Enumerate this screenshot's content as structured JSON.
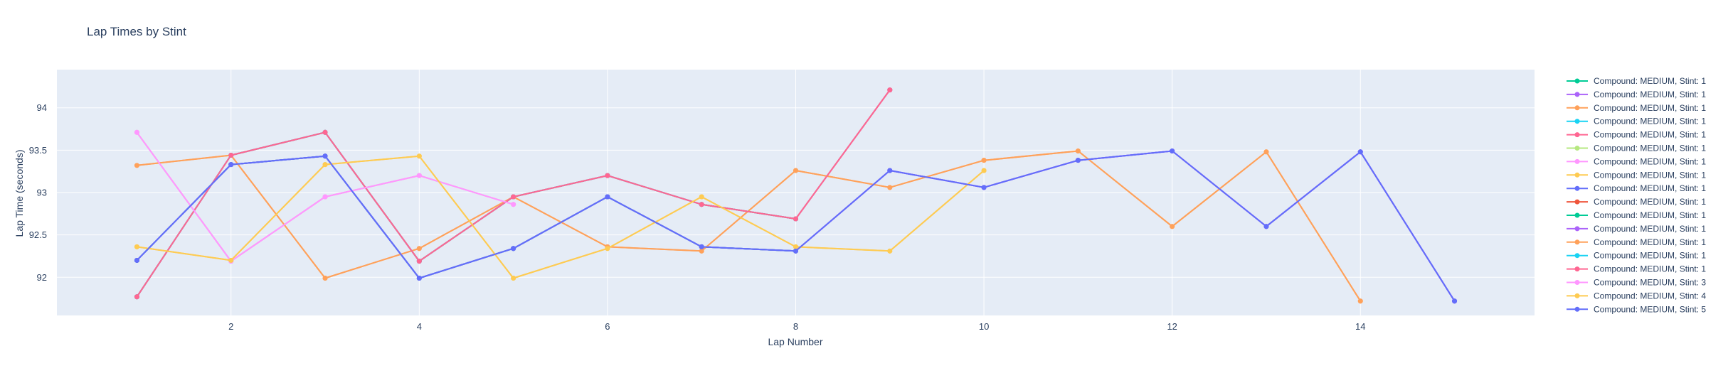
{
  "chart_data": {
    "type": "line",
    "title": "Lap Times by Stint",
    "xlabel": "Lap Number",
    "ylabel": "Lap Time (seconds)",
    "xlim": [
      0.15,
      15.85
    ],
    "ylim": [
      91.55,
      94.45
    ],
    "x_ticks": [
      2,
      4,
      6,
      8,
      10,
      12,
      14
    ],
    "y_ticks": [
      92,
      92.5,
      93,
      93.5,
      94
    ],
    "y_tick_labels": [
      "92",
      "92.5",
      "93",
      "93.5",
      "94"
    ],
    "grid": true,
    "legend_position": "right",
    "series": [
      {
        "name": "Compound: MEDIUM, Stint: 1",
        "color": "#00cc96",
        "x": [
          1,
          2,
          3,
          4,
          5,
          6,
          7,
          8
        ],
        "y": [
          92.2,
          93.33,
          93.43,
          91.99,
          92.34,
          92.95,
          92.36,
          92.31
        ]
      },
      {
        "name": "Compound: MEDIUM, Stint: 1",
        "color": "#ab63fa",
        "x": [
          1,
          2,
          3,
          4,
          5,
          6,
          7,
          8,
          9,
          10,
          11,
          12,
          13,
          14,
          15
        ],
        "y": [
          92.2,
          93.33,
          93.43,
          91.99,
          92.34,
          92.95,
          92.36,
          92.31,
          93.26,
          93.06,
          93.38,
          93.49,
          92.6,
          93.48,
          91.72
        ]
      },
      {
        "name": "Compound: MEDIUM, Stint: 1",
        "color": "#ffa15a",
        "x": [
          1,
          2,
          3,
          4,
          5,
          6,
          7,
          8,
          9,
          10,
          11,
          12,
          13,
          14
        ],
        "y": [
          93.32,
          93.44,
          91.99,
          92.34,
          92.95,
          92.36,
          92.31,
          93.26,
          93.06,
          93.38,
          93.49,
          92.6,
          93.48,
          91.72
        ]
      },
      {
        "name": "Compound: MEDIUM, Stint: 1",
        "color": "#19d3f3",
        "x": [
          1,
          2,
          3,
          4,
          5,
          6,
          7,
          8,
          9
        ],
        "y": [
          91.77,
          93.44,
          93.71,
          92.19,
          92.95,
          93.2,
          92.86,
          92.69,
          94.21
        ]
      },
      {
        "name": "Compound: MEDIUM, Stint: 1",
        "color": "#ff6692",
        "x": [
          1,
          2,
          3,
          4,
          5,
          6,
          7,
          8,
          9
        ],
        "y": [
          91.77,
          93.44,
          93.71,
          92.19,
          92.95,
          93.2,
          92.86,
          92.69,
          94.21
        ]
      },
      {
        "name": "Compound: MEDIUM, Stint: 1",
        "color": "#b6e880",
        "x": [
          1,
          2,
          3,
          4,
          5
        ],
        "y": [
          93.71,
          92.19,
          92.95,
          93.2,
          92.86
        ]
      },
      {
        "name": "Compound: MEDIUM, Stint: 1",
        "color": "#ff97ff",
        "x": [
          1,
          2,
          3,
          4,
          5
        ],
        "y": [
          93.71,
          92.19,
          92.95,
          93.2,
          92.86
        ]
      },
      {
        "name": "Compound: MEDIUM, Stint: 1",
        "color": "#fecb52",
        "x": [
          1,
          2,
          3,
          4,
          5,
          6,
          7,
          8,
          9,
          10
        ],
        "y": [
          92.36,
          92.2,
          93.33,
          93.43,
          91.99,
          92.34,
          92.95,
          92.36,
          92.31,
          93.26
        ]
      },
      {
        "name": "Compound: MEDIUM, Stint: 1",
        "color": "#636efa",
        "x": [
          1,
          2,
          3,
          4,
          5,
          6,
          7,
          8,
          9,
          10,
          11,
          12,
          13,
          14,
          15
        ],
        "y": [
          92.2,
          93.33,
          93.43,
          91.99,
          92.34,
          92.95,
          92.36,
          92.31,
          93.26,
          93.06,
          93.38,
          93.49,
          92.6,
          93.48,
          91.72
        ]
      },
      {
        "name": "Compound: MEDIUM, Stint: 1",
        "color": "#ef553b",
        "x": [
          1,
          2,
          3,
          4,
          5,
          6,
          7,
          8
        ],
        "y": [
          91.77,
          93.44,
          93.71,
          92.19,
          92.95,
          93.2,
          92.86,
          92.69
        ]
      },
      {
        "name": "Compound: MEDIUM, Stint: 1",
        "color": "#00cc96",
        "x": [
          1,
          2,
          3,
          4,
          5,
          6,
          7,
          8
        ],
        "y": [
          92.2,
          93.33,
          93.43,
          91.99,
          92.34,
          92.95,
          92.36,
          92.31
        ]
      },
      {
        "name": "Compound: MEDIUM, Stint: 1",
        "color": "#ab63fa",
        "x": [
          1,
          2,
          3,
          4,
          5,
          6,
          7,
          8,
          9,
          10,
          11,
          12,
          13,
          14,
          15
        ],
        "y": [
          92.2,
          93.33,
          93.43,
          91.99,
          92.34,
          92.95,
          92.36,
          92.31,
          93.26,
          93.06,
          93.38,
          93.49,
          92.6,
          93.48,
          91.72
        ]
      },
      {
        "name": "Compound: MEDIUM, Stint: 1",
        "color": "#ffa15a",
        "x": [
          1,
          2,
          3,
          4,
          5,
          6,
          7,
          8,
          9,
          10,
          11,
          12,
          13,
          14
        ],
        "y": [
          93.32,
          93.44,
          91.99,
          92.34,
          92.95,
          92.36,
          92.31,
          93.26,
          93.06,
          93.38,
          93.49,
          92.6,
          93.48,
          91.72
        ]
      },
      {
        "name": "Compound: MEDIUM, Stint: 1",
        "color": "#19d3f3",
        "x": [
          1,
          2,
          3,
          4,
          5,
          6,
          7,
          8
        ],
        "y": [
          91.77,
          93.44,
          93.71,
          92.19,
          92.95,
          93.2,
          92.86,
          92.69
        ]
      },
      {
        "name": "Compound: MEDIUM, Stint: 1",
        "color": "#ff6692",
        "x": [
          1,
          2,
          3,
          4,
          5,
          6,
          7,
          8,
          9
        ],
        "y": [
          91.77,
          93.44,
          93.71,
          92.19,
          92.95,
          93.2,
          92.86,
          92.69,
          94.21
        ]
      },
      {
        "name": "Compound: MEDIUM, Stint: 3",
        "color": "#ff97ff",
        "x": [
          1,
          2,
          3,
          4,
          5
        ],
        "y": [
          93.71,
          92.19,
          92.95,
          93.2,
          92.86
        ]
      },
      {
        "name": "Compound: MEDIUM, Stint: 4",
        "color": "#fecb52",
        "x": [
          1,
          2,
          3,
          4,
          5,
          6,
          7,
          8,
          9,
          10
        ],
        "y": [
          92.36,
          92.2,
          93.33,
          93.43,
          91.99,
          92.34,
          92.95,
          92.36,
          92.31,
          93.26
        ]
      },
      {
        "name": "Compound: MEDIUM, Stint: 5",
        "color": "#636efa",
        "x": [
          1,
          2,
          3,
          4,
          5,
          6,
          7,
          8,
          9,
          10,
          11,
          12,
          13,
          14,
          15
        ],
        "y": [
          92.2,
          93.33,
          93.43,
          91.99,
          92.34,
          92.95,
          92.36,
          92.31,
          93.26,
          93.06,
          93.38,
          93.49,
          92.6,
          93.48,
          91.72
        ]
      }
    ]
  },
  "colors": {
    "plot_background": "#e5ecf6",
    "grid": "#ffffff",
    "text": "#2a3f5f"
  }
}
